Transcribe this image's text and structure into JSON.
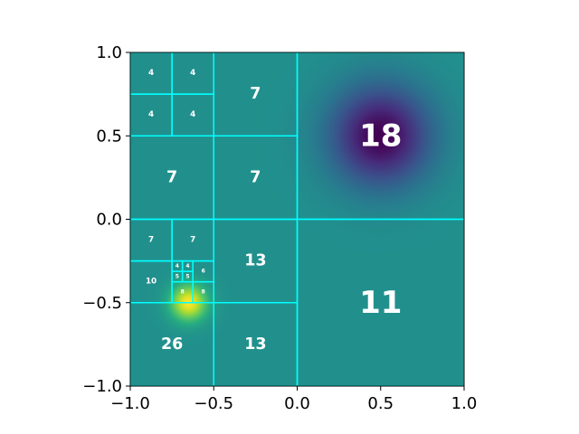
{
  "chart_data": {
    "type": "heatmap",
    "title": "",
    "xlabel": "",
    "ylabel": "",
    "xlim": [
      -1.0,
      1.0
    ],
    "ylim": [
      -1.0,
      1.0
    ],
    "grid": false,
    "colormap": "viridis",
    "minimum_center": [
      0.5,
      0.5
    ],
    "maximum_center": [
      -0.65,
      -0.5
    ],
    "x_ticks": [
      {
        "value": -1.0,
        "label": "−1.0"
      },
      {
        "value": -0.5,
        "label": "−0.5"
      },
      {
        "value": 0.0,
        "label": "0.0"
      },
      {
        "value": 0.5,
        "label": "0.5"
      },
      {
        "value": 1.0,
        "label": "1.0"
      }
    ],
    "y_ticks": [
      {
        "value": -1.0,
        "label": "−1.0"
      },
      {
        "value": -0.5,
        "label": "−0.5"
      },
      {
        "value": 0.0,
        "label": "0.0"
      },
      {
        "value": 0.5,
        "label": "0.5"
      },
      {
        "value": 1.0,
        "label": "1.0"
      }
    ],
    "cell_line_color": "#00ffff",
    "cells": [
      {
        "x0": 0.0,
        "x1": 1.0,
        "y0": 0.0,
        "y1": 1.0,
        "label": "18"
      },
      {
        "x0": 0.0,
        "x1": 1.0,
        "y0": -1.0,
        "y1": 0.0,
        "label": "11"
      },
      {
        "x0": -0.5,
        "x1": 0.0,
        "y0": 0.5,
        "y1": 1.0,
        "label": "7"
      },
      {
        "x0": -1.0,
        "x1": -0.5,
        "y0": 0.0,
        "y1": 0.5,
        "label": "7"
      },
      {
        "x0": -0.5,
        "x1": 0.0,
        "y0": 0.0,
        "y1": 0.5,
        "label": "7"
      },
      {
        "x0": -1.0,
        "x1": -0.75,
        "y0": 0.75,
        "y1": 1.0,
        "label": "4"
      },
      {
        "x0": -0.75,
        "x1": -0.5,
        "y0": 0.75,
        "y1": 1.0,
        "label": "4"
      },
      {
        "x0": -1.0,
        "x1": -0.75,
        "y0": 0.5,
        "y1": 0.75,
        "label": "4"
      },
      {
        "x0": -0.75,
        "x1": -0.5,
        "y0": 0.5,
        "y1": 0.75,
        "label": "4"
      },
      {
        "x0": -0.5,
        "x1": 0.0,
        "y0": -0.5,
        "y1": 0.0,
        "label": "13"
      },
      {
        "x0": -0.5,
        "x1": 0.0,
        "y0": -1.0,
        "y1": -0.5,
        "label": "13"
      },
      {
        "x0": -1.0,
        "x1": -0.5,
        "y0": -1.0,
        "y1": -0.5,
        "label": "26"
      },
      {
        "x0": -1.0,
        "x1": -0.75,
        "y0": -0.25,
        "y1": 0.0,
        "label": "7"
      },
      {
        "x0": -0.75,
        "x1": -0.5,
        "y0": -0.25,
        "y1": 0.0,
        "label": "7"
      },
      {
        "x0": -1.0,
        "x1": -0.75,
        "y0": -0.5,
        "y1": -0.25,
        "label": "10"
      },
      {
        "x0": -0.625,
        "x1": -0.5,
        "y0": -0.375,
        "y1": -0.25,
        "label": "6"
      },
      {
        "x0": -0.75,
        "x1": -0.625,
        "y0": -0.5,
        "y1": -0.375,
        "label": "8"
      },
      {
        "x0": -0.625,
        "x1": -0.5,
        "y0": -0.5,
        "y1": -0.375,
        "label": "8"
      },
      {
        "x0": -0.75,
        "x1": -0.6875,
        "y0": -0.3125,
        "y1": -0.25,
        "label": "4"
      },
      {
        "x0": -0.6875,
        "x1": -0.625,
        "y0": -0.3125,
        "y1": -0.25,
        "label": "4"
      },
      {
        "x0": -0.75,
        "x1": -0.6875,
        "y0": -0.375,
        "y1": -0.3125,
        "label": "5"
      },
      {
        "x0": -0.6875,
        "x1": -0.625,
        "y0": -0.375,
        "y1": -0.3125,
        "label": "5"
      }
    ]
  }
}
